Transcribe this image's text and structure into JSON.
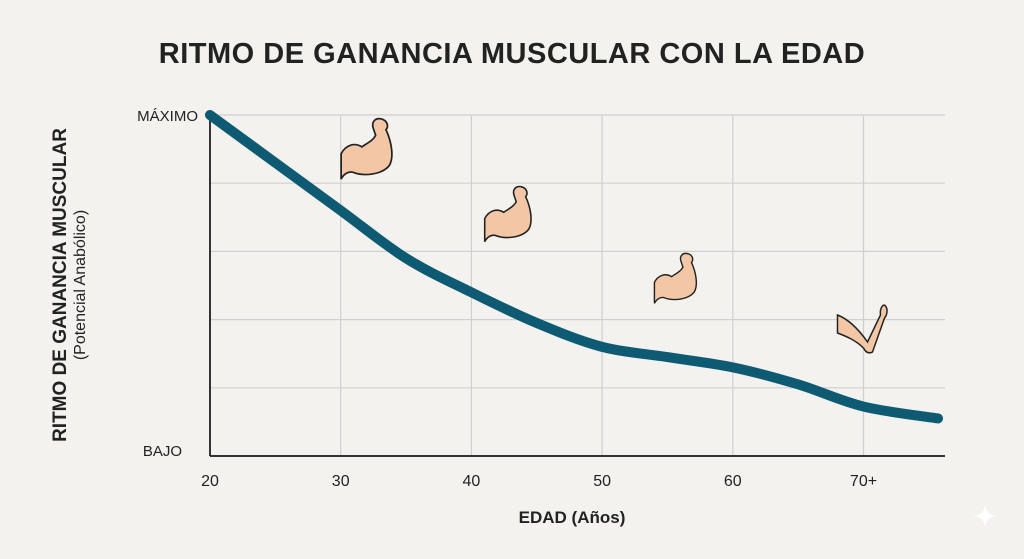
{
  "chart_data": {
    "type": "line",
    "title": "RITMO DE GANANCIA MUSCULAR CON LA EDAD",
    "xlabel": "EDAD (Años)",
    "ylabel": "RITMO DE GANANCIA MUSCULAR",
    "ylabel_sub": "(Potencial Anabólico)",
    "xlim": [
      20,
      76
    ],
    "ylim": [
      0,
      100
    ],
    "x_ticks": [
      20,
      30,
      40,
      50,
      60,
      70
    ],
    "x_tick_labels": [
      "20",
      "30",
      "40",
      "50",
      "60",
      "70+"
    ],
    "y_tick_labels": {
      "max": "MÁXIMO",
      "min": "BAJO"
    },
    "grid": true,
    "line_color": "#0d5a72",
    "x": [
      20,
      25,
      30,
      35,
      40,
      45,
      50,
      55,
      60,
      65,
      70,
      75.7
    ],
    "y": [
      100,
      86,
      72,
      58,
      48,
      39,
      32,
      29,
      26,
      21,
      14.5,
      11
    ],
    "annotations": [
      {
        "icon": "flexed-biceps-icon",
        "age": 32,
        "level": "strong"
      },
      {
        "icon": "flexed-biceps-icon",
        "age": 43,
        "level": "moderate"
      },
      {
        "icon": "flexed-biceps-icon",
        "age": 56,
        "level": "weaker"
      },
      {
        "icon": "arm-icon",
        "age": 70,
        "level": "weak"
      }
    ]
  }
}
